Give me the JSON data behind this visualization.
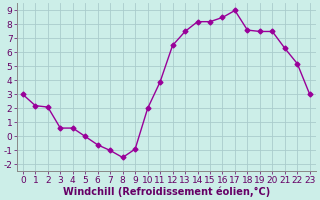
{
  "x": [
    0,
    1,
    2,
    3,
    4,
    5,
    6,
    7,
    8,
    9,
    10,
    11,
    12,
    13,
    14,
    15,
    16,
    17,
    18,
    19,
    20,
    21,
    22,
    23
  ],
  "y": [
    3,
    2.2,
    2.1,
    0.6,
    0.6,
    0.0,
    -0.6,
    -1.0,
    -1.5,
    -0.9,
    2.0,
    3.9,
    6.5,
    7.5,
    8.2,
    8.2,
    8.5,
    9.0,
    7.6,
    7.5,
    7.5,
    6.3,
    5.2,
    3.0
  ],
  "line_color": "#990099",
  "marker": "D",
  "marker_size": 2.5,
  "bg_color": "#cceee8",
  "grid_color": "#aacccc",
  "xlabel": "Windchill (Refroidissement éolien,°C)",
  "xlabel_fontsize": 7.0,
  "tick_fontsize": 6.5,
  "xlim": [
    -0.5,
    23.5
  ],
  "ylim": [
    -2.5,
    9.5
  ],
  "yticks": [
    -2,
    -1,
    0,
    1,
    2,
    3,
    4,
    5,
    6,
    7,
    8,
    9
  ],
  "xticks": [
    0,
    1,
    2,
    3,
    4,
    5,
    6,
    7,
    8,
    9,
    10,
    11,
    12,
    13,
    14,
    15,
    16,
    17,
    18,
    19,
    20,
    21,
    22,
    23
  ],
  "spine_color": "#888888",
  "linewidth": 1.0
}
